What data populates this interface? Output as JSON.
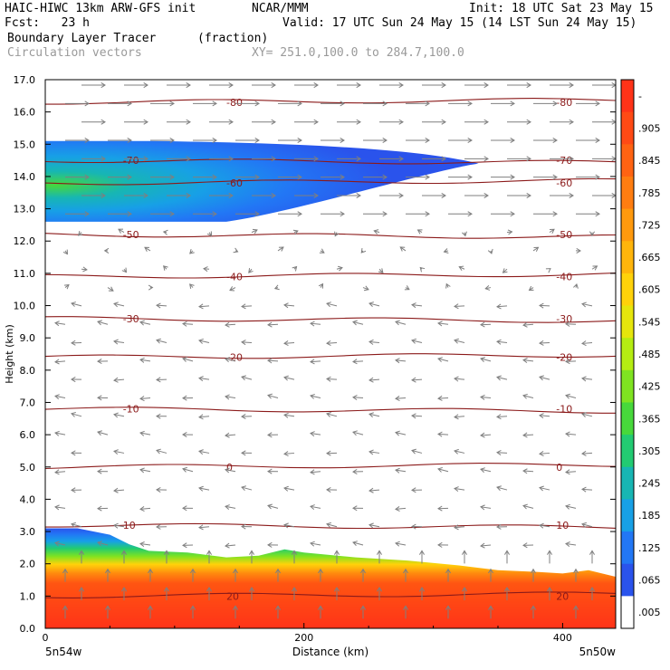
{
  "header": {
    "line1_left": "HAIC-HIWC 13km ARW-GFS init",
    "line1_mid": "NCAR/MMM",
    "line1_right": "Init: 18 UTC Sat 23 May 15",
    "line2_left": "Fcst:   23 h",
    "line2_right": "Valid: 17 UTC Sun 24 May 15 (14 LST Sun 24 May 15)",
    "field_name": "Boundary Layer Tracer",
    "field_units": "(fraction)",
    "vectors_label": "Circulation vectors",
    "xsec_label": "XY= 251.0,100.0 to 284.7,100.0"
  },
  "chart_data": {
    "type": "cross-section",
    "ylabel": "Height (km)",
    "xlabel": "Distance (km)",
    "ylim": [
      0,
      17
    ],
    "xlim": [
      0,
      441
    ],
    "y_ticks": [
      "0.0",
      "1.0",
      "2.0",
      "3.0",
      "4.0",
      "5.0",
      "6.0",
      "7.0",
      "8.0",
      "9.0",
      "10.0",
      "11.0",
      "12.0",
      "13.0",
      "14.0",
      "15.0",
      "16.0",
      "17.0"
    ],
    "x_ticks": [
      {
        "value": 0,
        "label": "0"
      },
      {
        "value": 200,
        "label": "200"
      },
      {
        "value": 400,
        "label": "400"
      }
    ],
    "x_end_labels": {
      "left": "5n54w",
      "right": "5n50w"
    },
    "colorbar": {
      "labels": [
        "-",
        ".905",
        ".845",
        ".785",
        ".725",
        ".665",
        ".605",
        ".545",
        ".485",
        ".425",
        ".365",
        ".305",
        ".245",
        ".185",
        ".125",
        ".065",
        ".005"
      ],
      "colors": [
        "#ff3318",
        "#ff4a15",
        "#ff6312",
        "#ff7d10",
        "#ff990d",
        "#ffb50b",
        "#ffd20a",
        "#e6e60c",
        "#b5ed12",
        "#7fe321",
        "#47d83b",
        "#22cb72",
        "#17b6b3",
        "#17a0e6",
        "#2277f5",
        "#2a53ec",
        "#ffffff"
      ]
    },
    "temperature_contours": [
      {
        "label": "20",
        "height_km": 1.0
      },
      {
        "label": "10",
        "height_km": 3.2
      },
      {
        "label": "0",
        "height_km": 5.0
      },
      {
        "label": "-10",
        "height_km": 6.8
      },
      {
        "label": "-20",
        "height_km": 8.4
      },
      {
        "label": "-30",
        "height_km": 9.6
      },
      {
        "label": "-40",
        "height_km": 10.9
      },
      {
        "label": "-50",
        "height_km": 12.2
      },
      {
        "label": "-60",
        "height_km": 13.8
      },
      {
        "label": "-70",
        "height_km": 14.5
      },
      {
        "label": "-80",
        "height_km": 16.3
      }
    ],
    "tracer_surface_layer": {
      "top_height_km": [
        [
          0,
          3.1
        ],
        [
          25,
          3.1
        ],
        [
          50,
          2.9
        ],
        [
          65,
          2.6
        ],
        [
          80,
          2.4
        ],
        [
          110,
          2.35
        ],
        [
          140,
          2.2
        ],
        [
          165,
          2.25
        ],
        [
          185,
          2.45
        ],
        [
          200,
          2.35
        ],
        [
          240,
          2.2
        ],
        [
          280,
          2.1
        ],
        [
          320,
          1.95
        ],
        [
          350,
          1.8
        ],
        [
          380,
          1.75
        ],
        [
          400,
          1.7
        ],
        [
          420,
          1.8
        ],
        [
          441,
          1.6
        ]
      ],
      "max_fraction": 0.9
    },
    "tracer_upper_plume": {
      "bottom_height_km": 12.6,
      "top_height_km": 15.1,
      "tip_distance_km": 335,
      "core_height_km": 13.5,
      "max_fraction": 0.4
    }
  },
  "colors": {
    "contour": "#8b1a1a",
    "vector": "#7f7f7f",
    "axis": "#000000"
  }
}
